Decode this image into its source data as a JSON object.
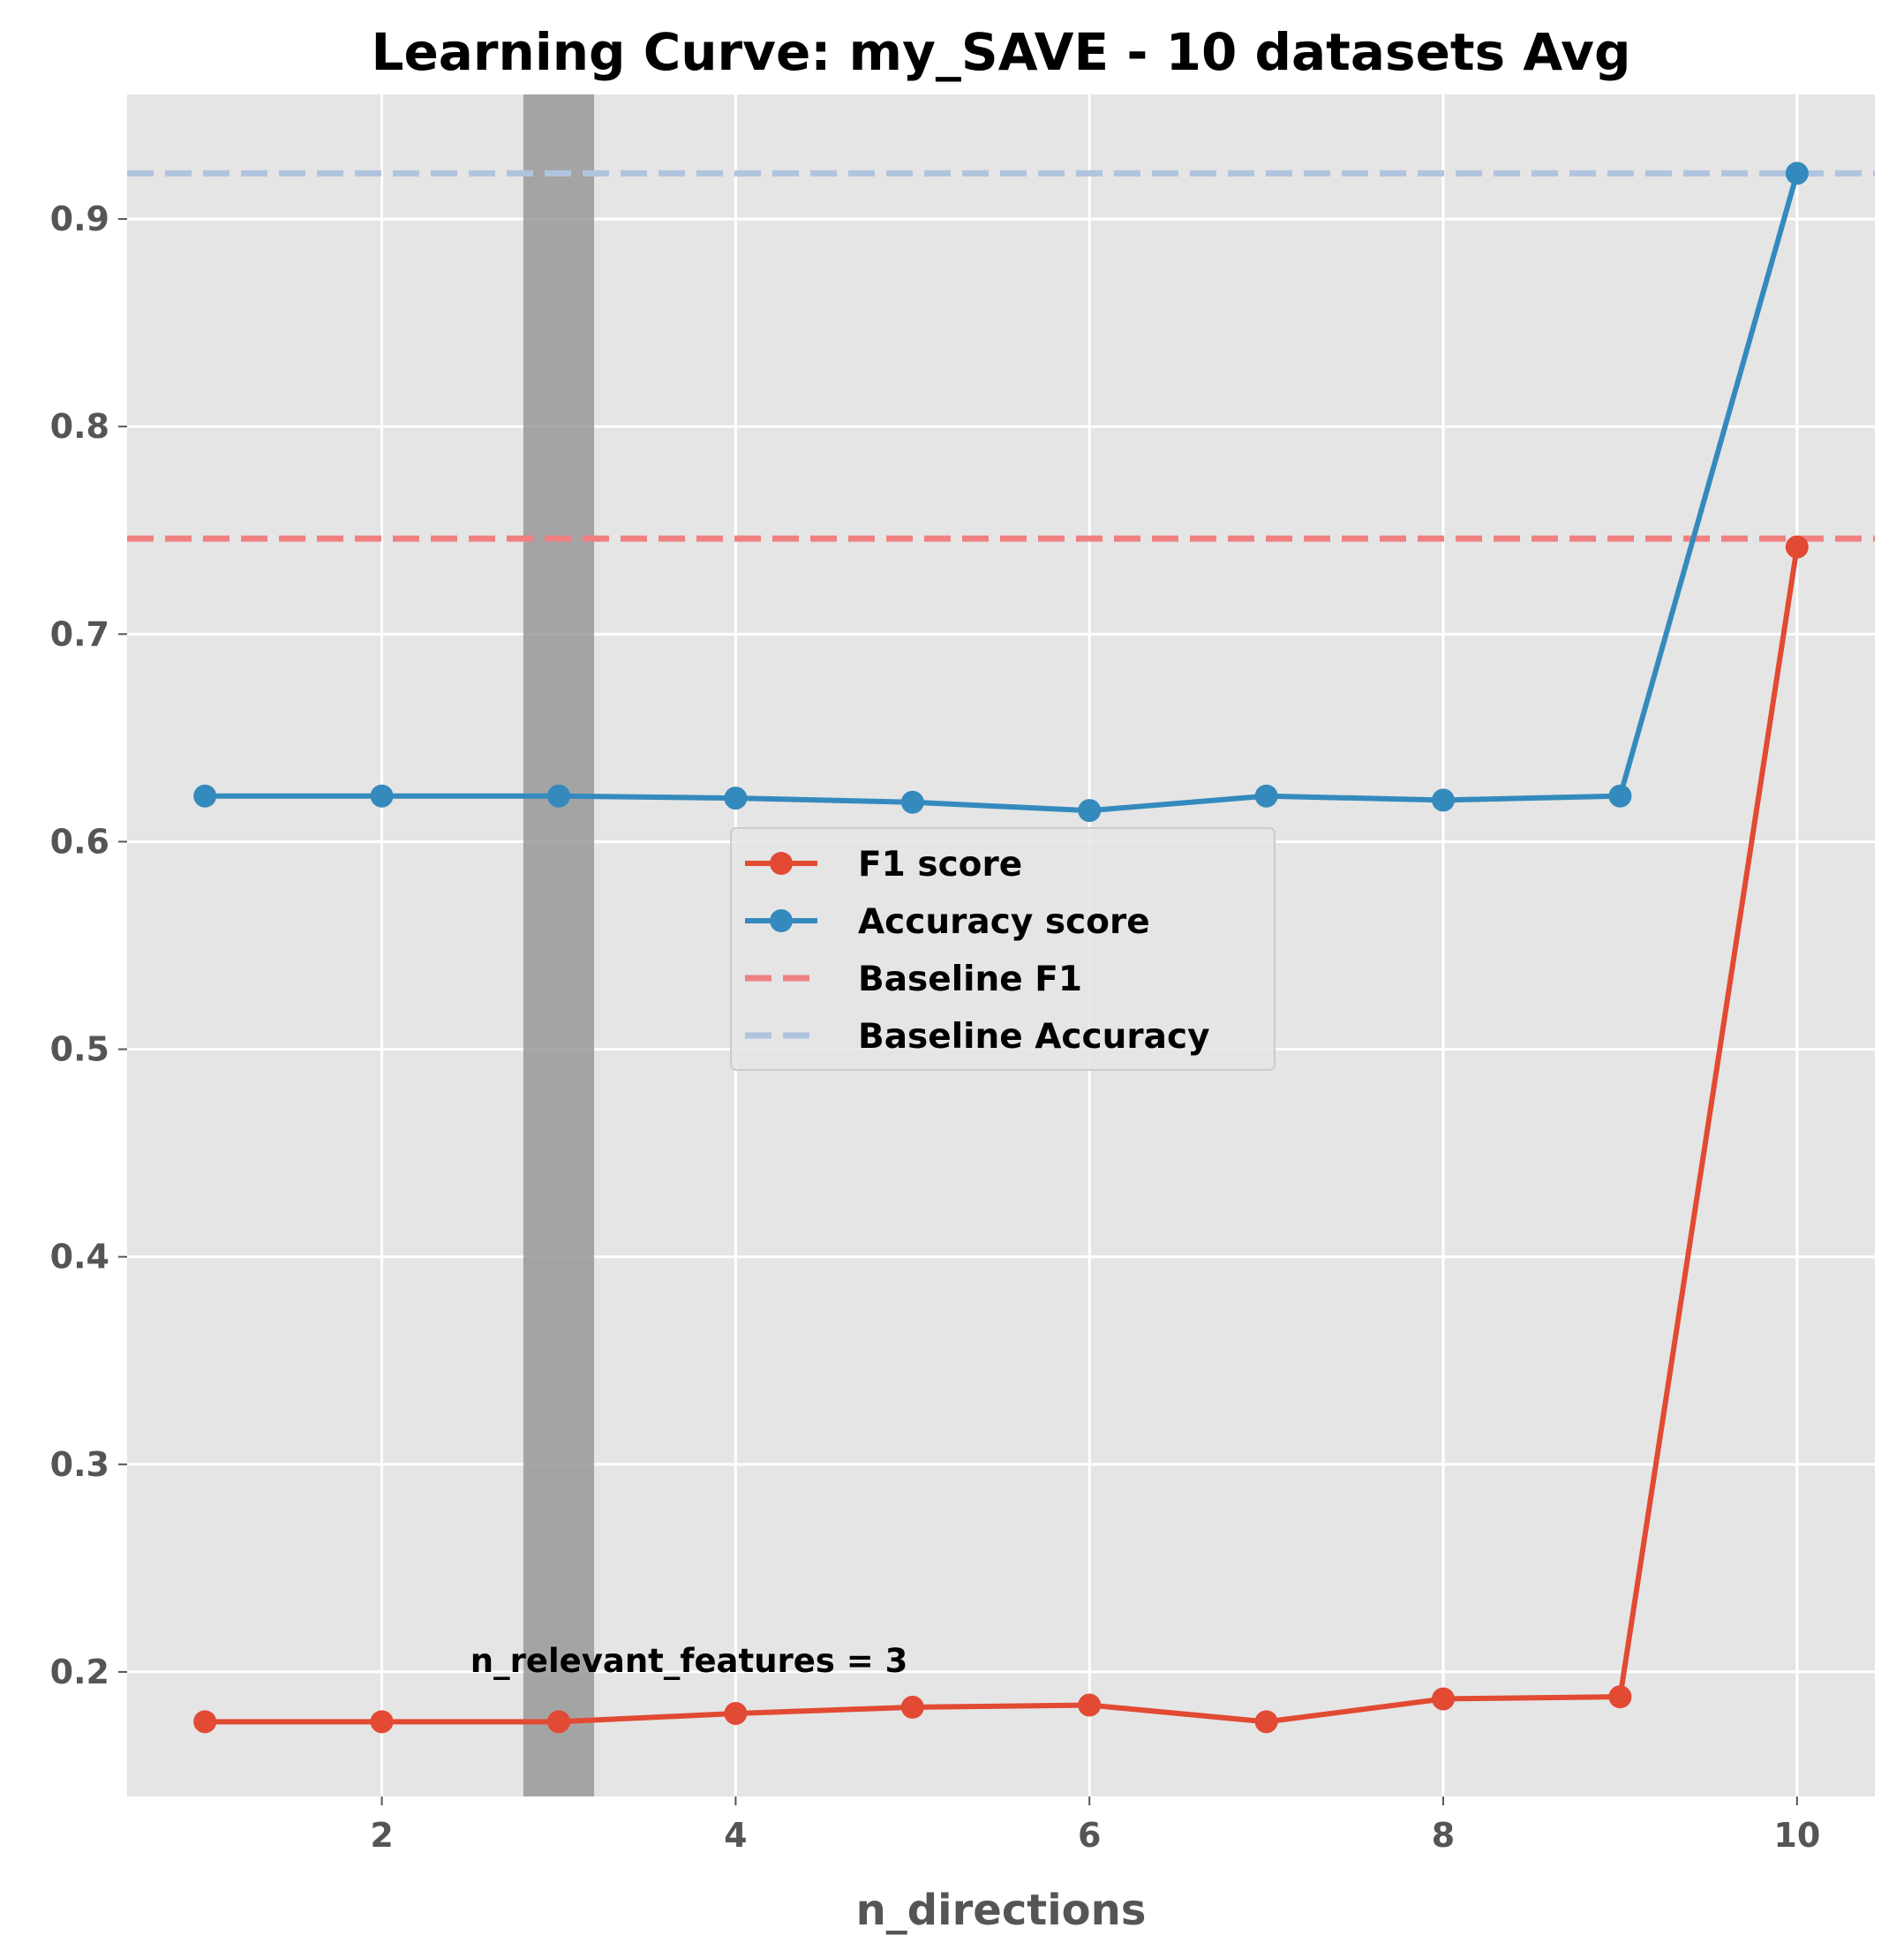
{
  "chart_data": {
    "type": "line",
    "title": "Learning Curve: my_SAVE - 10 datasets Avg",
    "xlabel": "n_directions",
    "ylabel": "",
    "xlim": [
      0.56,
      10.44
    ],
    "ylim": [
      0.14,
      0.96
    ],
    "x_ticks": [
      2,
      4,
      6,
      8,
      10
    ],
    "y_ticks": [
      0.2,
      0.3,
      0.4,
      0.5,
      0.6,
      0.7,
      0.8,
      0.9
    ],
    "grid": true,
    "x": [
      1,
      2,
      3,
      4,
      5,
      6,
      7,
      8,
      9,
      10
    ],
    "series": [
      {
        "name": "F1 score",
        "color": "#E24A33",
        "style": "solid",
        "marker": "circle",
        "values": [
          0.176,
          0.176,
          0.176,
          0.18,
          0.183,
          0.184,
          0.176,
          0.187,
          0.188,
          0.742
        ]
      },
      {
        "name": "Accuracy score",
        "color": "#348ABD",
        "style": "solid",
        "marker": "circle",
        "values": [
          0.622,
          0.622,
          0.622,
          0.621,
          0.619,
          0.615,
          0.622,
          0.62,
          0.622,
          0.922
        ]
      }
    ],
    "baselines": [
      {
        "name": "Baseline F1",
        "value": 0.746,
        "color": "#F08080"
      },
      {
        "name": "Baseline Accuracy",
        "value": 0.922,
        "color": "#B0C4DE"
      }
    ],
    "highlight_band": {
      "x_start": 2.8,
      "x_end": 3.2,
      "color": "#999999"
    },
    "annotation": {
      "text": "n_relevant_features = 3",
      "x": 2.5,
      "y": 0.2
    },
    "legend": {
      "position": "center",
      "entries": [
        "F1 score",
        "Accuracy score",
        "Baseline F1",
        "Baseline Accuracy"
      ]
    }
  }
}
